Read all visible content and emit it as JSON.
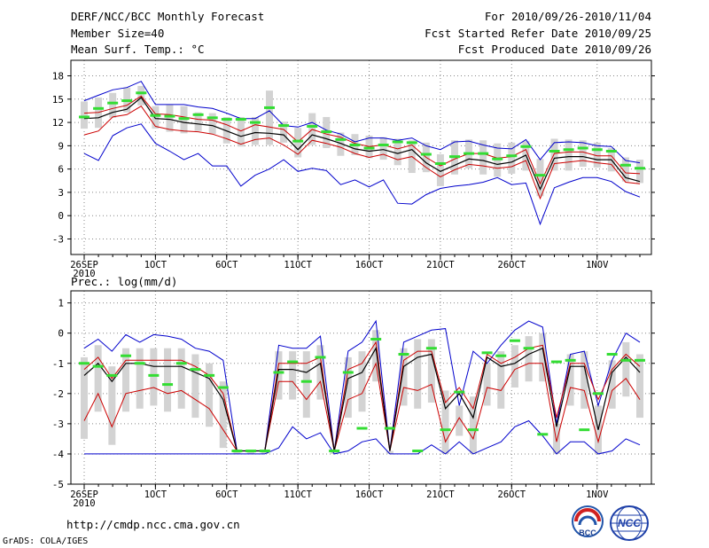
{
  "header": {
    "title": "DERF/NCC/BCC Monthly Forecast",
    "member_size": "Member Size=40",
    "variable": "Mean Surf. Temp.: °C",
    "period": "For 2010/09/26-2010/11/04",
    "fcst_started": "Fcst Started Refer Date 2010/09/25",
    "fcst_produced": "Fcst Produced Date 2010/09/26"
  },
  "footer": {
    "url": "http://cmdp.ncc.cma.gov.cn",
    "grads": "GrADS: COLA/IGES"
  },
  "logos": {
    "bcc": "BCC",
    "ncc": "NCC"
  },
  "colors": {
    "max_min": "#0000cc",
    "ens_band": "#cc0000",
    "mean": "#000000",
    "median": "#33dd33",
    "box": "#d3d3d3"
  },
  "chart_data": [
    {
      "type": "line",
      "title": "Mean Surf. Temp.: °C",
      "ylim": [
        -5,
        20
      ],
      "yticks": [
        -3,
        0,
        3,
        6,
        9,
        12,
        15,
        18
      ],
      "xlabel_ticks": [
        {
          "day": 0,
          "label": "26SEP"
        },
        {
          "day": 5,
          "label": "1OCT"
        },
        {
          "day": 10,
          "label": "6OCT"
        },
        {
          "day": 15,
          "label": "11OCT"
        },
        {
          "day": 20,
          "label": "16OCT"
        },
        {
          "day": 25,
          "label": "21OCT"
        },
        {
          "day": 30,
          "label": "26OCT"
        },
        {
          "day": 36,
          "label": "1NOV"
        }
      ],
      "year_label": "2010",
      "series": [
        {
          "name": "max",
          "values": [
            14.8,
            15.5,
            16.2,
            16.5,
            17.3,
            14.3,
            14.3,
            14.3,
            14,
            13.8,
            13.2,
            12.5,
            12.5,
            13.5,
            11.6,
            11.4,
            12,
            11,
            10.5,
            9.5,
            10,
            10,
            9.7,
            10,
            9,
            8.5,
            9.5,
            9.6,
            9.1,
            8.7,
            8.6,
            9.8,
            7.2,
            9.4,
            9.5,
            9.4,
            9,
            8.9,
            7.1,
            6.8
          ]
        },
        {
          "name": "upper",
          "values": [
            13.2,
            13.3,
            13.8,
            14.2,
            15.4,
            13.1,
            13,
            12.7,
            12.4,
            12.3,
            11.7,
            10.9,
            11.7,
            11.4,
            11.1,
            9.5,
            11.1,
            10.5,
            10.1,
            9.3,
            8.9,
            9.1,
            8.6,
            9.1,
            7.5,
            6.4,
            7.3,
            8,
            8,
            7.4,
            7.6,
            8.5,
            4.1,
            8,
            8.2,
            8.2,
            7.7,
            7.7,
            5.5,
            5.4
          ]
        },
        {
          "name": "mean",
          "values": [
            12.5,
            12.6,
            13.3,
            13.7,
            15.2,
            12.5,
            12.4,
            12,
            11.8,
            11.6,
            10.9,
            10.2,
            10.7,
            10.6,
            10.4,
            8.5,
            10.4,
            9.9,
            9.3,
            8.6,
            8.3,
            8.5,
            8,
            8.5,
            6.8,
            5.7,
            6.5,
            7.3,
            7.1,
            6.6,
            6.9,
            7.8,
            3.4,
            7.4,
            7.6,
            7.6,
            7.2,
            7.2,
            4.9,
            4.4
          ]
        },
        {
          "name": "lower",
          "values": [
            10.4,
            10.9,
            12.7,
            13,
            14.1,
            11.5,
            11.1,
            10.9,
            10.8,
            10.5,
            9.9,
            9.2,
            9.8,
            10,
            9.1,
            7.9,
            9.7,
            9.3,
            8.8,
            8,
            7.5,
            7.9,
            7.2,
            7.6,
            6.2,
            5,
            5.9,
            6.6,
            6.4,
            6.1,
            6.3,
            7.1,
            2.2,
            6.7,
            6.9,
            7.1,
            6.8,
            6.6,
            4.3,
            4.1
          ]
        },
        {
          "name": "min",
          "values": [
            8,
            7.1,
            10.3,
            11.3,
            11.8,
            9.3,
            8.3,
            7.2,
            8,
            6.4,
            6.4,
            3.8,
            5.2,
            6,
            7.2,
            5.7,
            6.1,
            5.8,
            4,
            4.6,
            3.7,
            4.6,
            1.6,
            1.5,
            2.7,
            3.5,
            3.8,
            4,
            4.3,
            4.9,
            4,
            4.2,
            -1.1,
            3.6,
            4.3,
            4.9,
            4.9,
            4.4,
            3.1,
            2.4
          ]
        },
        {
          "name": "median",
          "values": [
            12.7,
            13.8,
            14.5,
            14.8,
            15.8,
            12.9,
            12.8,
            12.5,
            13,
            12.6,
            12.4,
            12.4,
            12,
            13.9,
            11.6,
            9.6,
            11.5,
            10.8,
            9.8,
            9.1,
            8.7,
            9.1,
            9.5,
            9.4,
            7.9,
            6.7,
            7.6,
            8,
            8,
            7.3,
            7.7,
            8.9,
            5.2,
            8.3,
            8.5,
            8.7,
            8.5,
            8.3,
            6.5,
            6.1
          ]
        },
        {
          "name": "box_top",
          "values": [
            14.7,
            15.2,
            15.8,
            16.5,
            16.7,
            14.1,
            14.3,
            14.1,
            13.3,
            13.2,
            12.7,
            12.7,
            12.7,
            16.1,
            12.1,
            11.3,
            13.2,
            12.7,
            10.7,
            10.5,
            10.3,
            10.1,
            9.9,
            9.7,
            9.4,
            7.9,
            9.7,
            9.8,
            9.7,
            9.3,
            9.4,
            9.6,
            7.3,
            9.9,
            9.8,
            9.7,
            9.4,
            8.7,
            7.5,
            7.2
          ]
        },
        {
          "name": "box_bottom",
          "values": [
            11.2,
            11.3,
            12.6,
            13.3,
            14.2,
            11.2,
            10.8,
            10.6,
            10.9,
            10.5,
            9.3,
            8.9,
            9.1,
            9.1,
            9.4,
            7.5,
            9.1,
            8.7,
            7.7,
            7.8,
            7.4,
            7.2,
            6.5,
            5.5,
            5.6,
            3.8,
            5.3,
            6.1,
            5.3,
            5,
            5.4,
            5.8,
            2.5,
            5.8,
            5.8,
            6.3,
            6.2,
            5.7,
            4.4,
            4.2
          ]
        }
      ]
    },
    {
      "type": "line",
      "title": "Prec.: log(mm/d)",
      "ylim": [
        -5,
        1.4
      ],
      "yticks": [
        -5,
        -4,
        -3,
        -2,
        -1,
        0,
        1
      ],
      "xlabel_ticks": [
        {
          "day": 0,
          "label": "26SEP"
        },
        {
          "day": 5,
          "label": "1OCT"
        },
        {
          "day": 10,
          "label": "6OCT"
        },
        {
          "day": 15,
          "label": "11OCT"
        },
        {
          "day": 20,
          "label": "16OCT"
        },
        {
          "day": 25,
          "label": "21OCT"
        },
        {
          "day": 30,
          "label": "26OCT"
        },
        {
          "day": 36,
          "label": "1NOV"
        }
      ],
      "year_label": "2010",
      "series": [
        {
          "name": "max",
          "values": [
            -0.5,
            -0.2,
            -0.6,
            -0.05,
            -0.3,
            -0.05,
            -0.1,
            -0.2,
            -0.5,
            -0.6,
            -0.9,
            -3.9,
            -3.9,
            -3.9,
            -0.4,
            -0.5,
            -0.5,
            -0.1,
            -3.9,
            -0.6,
            -0.3,
            0.4,
            -3.9,
            -0.3,
            -0.1,
            0.1,
            0.15,
            -2.4,
            -0.6,
            -1.0,
            -0.4,
            0.1,
            0.4,
            0.2,
            -3.0,
            -0.7,
            -0.6,
            -2.4,
            -0.9,
            0.0,
            -0.3
          ]
        },
        {
          "name": "upper",
          "values": [
            -1.2,
            -0.8,
            -1.5,
            -0.9,
            -0.9,
            -0.9,
            -0.9,
            -0.9,
            -1.1,
            -1.4,
            -2.0,
            -3.9,
            -3.9,
            -3.9,
            -1.0,
            -1.0,
            -1.0,
            -0.8,
            -3.9,
            -1.2,
            -1.0,
            -0.3,
            -3.9,
            -0.9,
            -0.6,
            -0.6,
            -2.3,
            -1.8,
            -2.5,
            -0.7,
            -1.0,
            -0.8,
            -0.5,
            -0.4,
            -2.8,
            -1.0,
            -1.0,
            -2.2,
            -1.2,
            -0.7,
            -1.1
          ]
        },
        {
          "name": "mean",
          "values": [
            -1.4,
            -1.0,
            -1.6,
            -1.0,
            -1.0,
            -1.1,
            -1.1,
            -1.1,
            -1.3,
            -1.5,
            -2.2,
            -3.9,
            -3.9,
            -3.9,
            -1.2,
            -1.2,
            -1.3,
            -1.0,
            -3.9,
            -1.5,
            -1.3,
            -0.5,
            -3.9,
            -1.1,
            -0.8,
            -0.7,
            -2.5,
            -2.0,
            -2.8,
            -0.8,
            -1.1,
            -1.0,
            -0.7,
            -0.5,
            -3.1,
            -1.1,
            -1.1,
            -3.2,
            -1.3,
            -0.8,
            -1.3
          ]
        },
        {
          "name": "lower",
          "values": [
            -2.9,
            -2.0,
            -3.1,
            -2.0,
            -1.9,
            -1.8,
            -2.0,
            -1.9,
            -2.2,
            -2.5,
            -3.2,
            -3.9,
            -3.9,
            -3.9,
            -1.6,
            -1.6,
            -2.2,
            -1.6,
            -3.9,
            -2.2,
            -2.0,
            -1.0,
            -3.9,
            -1.8,
            -1.9,
            -1.7,
            -3.6,
            -2.8,
            -3.5,
            -1.8,
            -1.9,
            -1.2,
            -1.0,
            -1.0,
            -3.6,
            -1.8,
            -1.9,
            -3.6,
            -1.9,
            -1.5,
            -2.2
          ]
        },
        {
          "name": "min",
          "values": [
            -4,
            -4,
            -4,
            -4,
            -4,
            -4,
            -4,
            -4,
            -4,
            -4,
            -4,
            -4,
            -4,
            -4,
            -3.8,
            -3.1,
            -3.5,
            -3.3,
            -4,
            -3.9,
            -3.6,
            -3.5,
            -4,
            -4,
            -4,
            -3.7,
            -4,
            -3.6,
            -4,
            -3.8,
            -3.6,
            -3.1,
            -2.9,
            -3.4,
            -4,
            -3.6,
            -3.6,
            -4,
            -3.9,
            -3.5,
            -3.7
          ]
        },
        {
          "name": "median",
          "values": [
            -1.0,
            -1.1,
            -1.4,
            -0.75,
            -1.0,
            -1.4,
            -1.7,
            -1.0,
            -1.2,
            -1.4,
            -1.8,
            -3.9,
            -3.9,
            -3.9,
            -1.3,
            -0.95,
            -1.6,
            -0.8,
            -3.9,
            -1.3,
            -3.15,
            -0.2,
            -3.15,
            -0.7,
            -3.9,
            -0.5,
            -3.2,
            -1.95,
            -3.2,
            -0.65,
            -0.75,
            -0.25,
            -0.5,
            -3.35,
            -0.95,
            -0.9,
            -3.2,
            -2.0,
            -0.7,
            -0.9,
            -0.9
          ]
        }
      ]
    }
  ]
}
